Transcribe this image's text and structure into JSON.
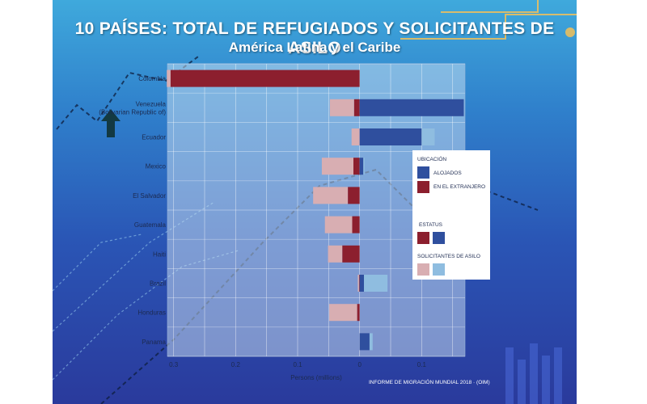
{
  "title": "10 PAÍSES: TOTAL DE REFUGIADOS Y SOLICITANTES DE ASILO",
  "subtitle": "América Latina y el Caribe",
  "credit": "INFORME DE MIGRACIÓN MUNDIAL 2018 · (OIM)",
  "legend": {
    "ubicacion_title": "UBICACIÓN",
    "alojados": "ALOJADOS",
    "extranjero": "EN EL EXTRANJERO",
    "estatus_title": "ESTATUS",
    "solicitantes_title": "SOLICITANTES DE ASILO"
  },
  "colors": {
    "abroad_refugees": "#8c1f2e",
    "hosted_refugees": "#2f4f9e",
    "abroad_asylum": "#d8aeb2",
    "hosted_asylum": "#8fbde0"
  },
  "chart_data": {
    "type": "bar",
    "orientation": "horizontal-diverging",
    "title": "10 PAÍSES: TOTAL DE REFUGIADOS Y SOLICITANTES DE ASILO",
    "subtitle": "América Latina y el Caribe",
    "xlabel": "Persons (millions)",
    "xlim": [
      -0.31,
      0.17
    ],
    "x_ticks": [
      -0.3,
      -0.2,
      -0.1,
      0,
      0.1
    ],
    "x_tick_labels": [
      "0.3",
      "0.2",
      "0.1",
      "0",
      "0.1"
    ],
    "grid": true,
    "categories": [
      [
        "Colombia"
      ],
      [
        "Venezuela",
        "(Bolivarian Republic of)"
      ],
      [
        "Ecuador"
      ],
      [
        "Mexico"
      ],
      [
        "El Salvador"
      ],
      [
        "Guatemala"
      ],
      [
        "Haiti"
      ],
      [
        "Brazil"
      ],
      [
        "Honduras"
      ],
      [
        "Panama"
      ]
    ],
    "series": [
      {
        "key": "abroad_refugees",
        "values": [
          0.305,
          0.009,
          0.0,
          0.01,
          0.019,
          0.012,
          0.028,
          0.001,
          0.004,
          0.0
        ]
      },
      {
        "key": "abroad_asylum",
        "values": [
          0.006,
          0.039,
          0.013,
          0.051,
          0.056,
          0.044,
          0.023,
          0.002,
          0.045,
          0.0
        ]
      },
      {
        "key": "hosted_refugees",
        "values": [
          0.0,
          0.168,
          0.1,
          0.006,
          0.0,
          0.0,
          0.0,
          0.007,
          0.0,
          0.016
        ]
      },
      {
        "key": "hosted_asylum",
        "values": [
          0.0,
          0.0,
          0.021,
          0.002,
          0.0,
          0.0,
          0.0,
          0.038,
          0.0,
          0.005
        ]
      }
    ]
  }
}
